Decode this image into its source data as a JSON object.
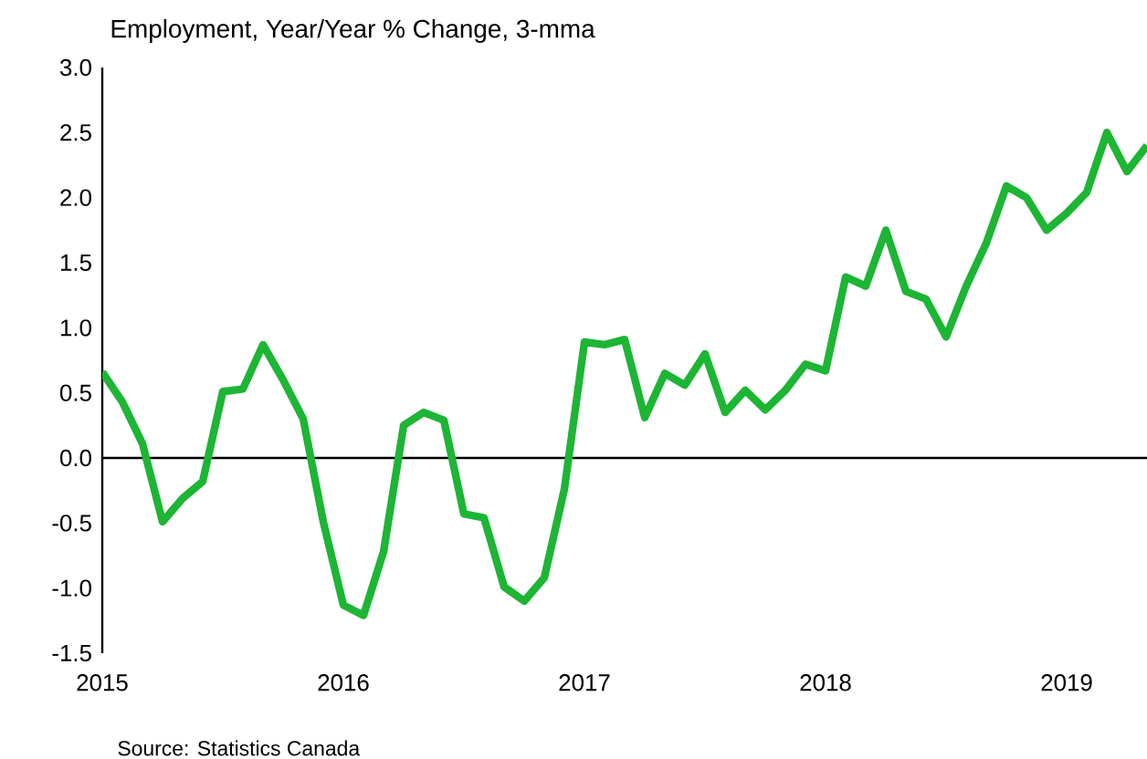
{
  "chart_data": {
    "type": "line",
    "title": "Employment, Year/Year % Change, 3-mma",
    "x": [
      "2015-01",
      "2015-02",
      "2015-03",
      "2015-04",
      "2015-05",
      "2015-06",
      "2015-07",
      "2015-08",
      "2015-09",
      "2015-10",
      "2015-11",
      "2015-12",
      "2016-01",
      "2016-02",
      "2016-03",
      "2016-04",
      "2016-05",
      "2016-06",
      "2016-07",
      "2016-08",
      "2016-09",
      "2016-10",
      "2016-11",
      "2016-12",
      "2017-01",
      "2017-02",
      "2017-03",
      "2017-04",
      "2017-05",
      "2017-06",
      "2017-07",
      "2017-08",
      "2017-09",
      "2017-10",
      "2017-11",
      "2017-12",
      "2018-01",
      "2018-02",
      "2018-03",
      "2018-04",
      "2018-05",
      "2018-06",
      "2018-07",
      "2018-08",
      "2018-09",
      "2018-10",
      "2018-11",
      "2018-12",
      "2019-01",
      "2019-02",
      "2019-03",
      "2019-04",
      "2019-05"
    ],
    "series": [
      {
        "color": "#1db534",
        "values": [
          0.66,
          0.43,
          0.11,
          -0.49,
          -0.31,
          -0.18,
          0.51,
          0.53,
          0.87,
          0.6,
          0.3,
          -0.49,
          -1.13,
          -1.21,
          -0.72,
          0.25,
          0.35,
          0.29,
          -0.43,
          -0.46,
          -0.99,
          -1.1,
          -0.92,
          -0.24,
          0.89,
          0.87,
          0.91,
          0.31,
          0.65,
          0.56,
          0.8,
          0.35,
          0.52,
          0.37,
          0.52,
          0.72,
          0.67,
          1.39,
          1.32,
          1.75,
          1.28,
          1.22,
          0.93,
          1.32,
          1.65,
          2.09,
          2.0,
          1.75,
          1.88,
          2.04,
          2.5,
          2.2,
          2.4
        ]
      }
    ],
    "xlim": [
      "2015-01",
      "2019-05"
    ],
    "xticks": [
      {
        "value": "2015-01",
        "label": "2015"
      },
      {
        "value": "2016-01",
        "label": "2016"
      },
      {
        "value": "2017-01",
        "label": "2017"
      },
      {
        "value": "2018-01",
        "label": "2018"
      },
      {
        "value": "2019-01",
        "label": "2019"
      }
    ],
    "ylim": [
      -1.5,
      3.0
    ],
    "yticks": [
      {
        "value": -1.5,
        "label": "-1.5"
      },
      {
        "value": -1.0,
        "label": "-1.0"
      },
      {
        "value": -0.5,
        "label": "-0.5"
      },
      {
        "value": 0,
        "label": "0.0"
      },
      {
        "value": 0.5,
        "label": "0.5"
      },
      {
        "value": 1.0,
        "label": "1.0"
      },
      {
        "value": 1.5,
        "label": "1.5"
      },
      {
        "value": 2.0,
        "label": "2.0"
      },
      {
        "value": 2.5,
        "label": "2.5"
      },
      {
        "value": 3.0,
        "label": "3.0"
      }
    ],
    "ref_lines": [
      {
        "axis": "y",
        "value": 0,
        "color": "#000000"
      }
    ],
    "grid": false,
    "marker": "none",
    "line_style": "solid",
    "annotations": [
      "Source: Statistics Canada"
    ]
  }
}
